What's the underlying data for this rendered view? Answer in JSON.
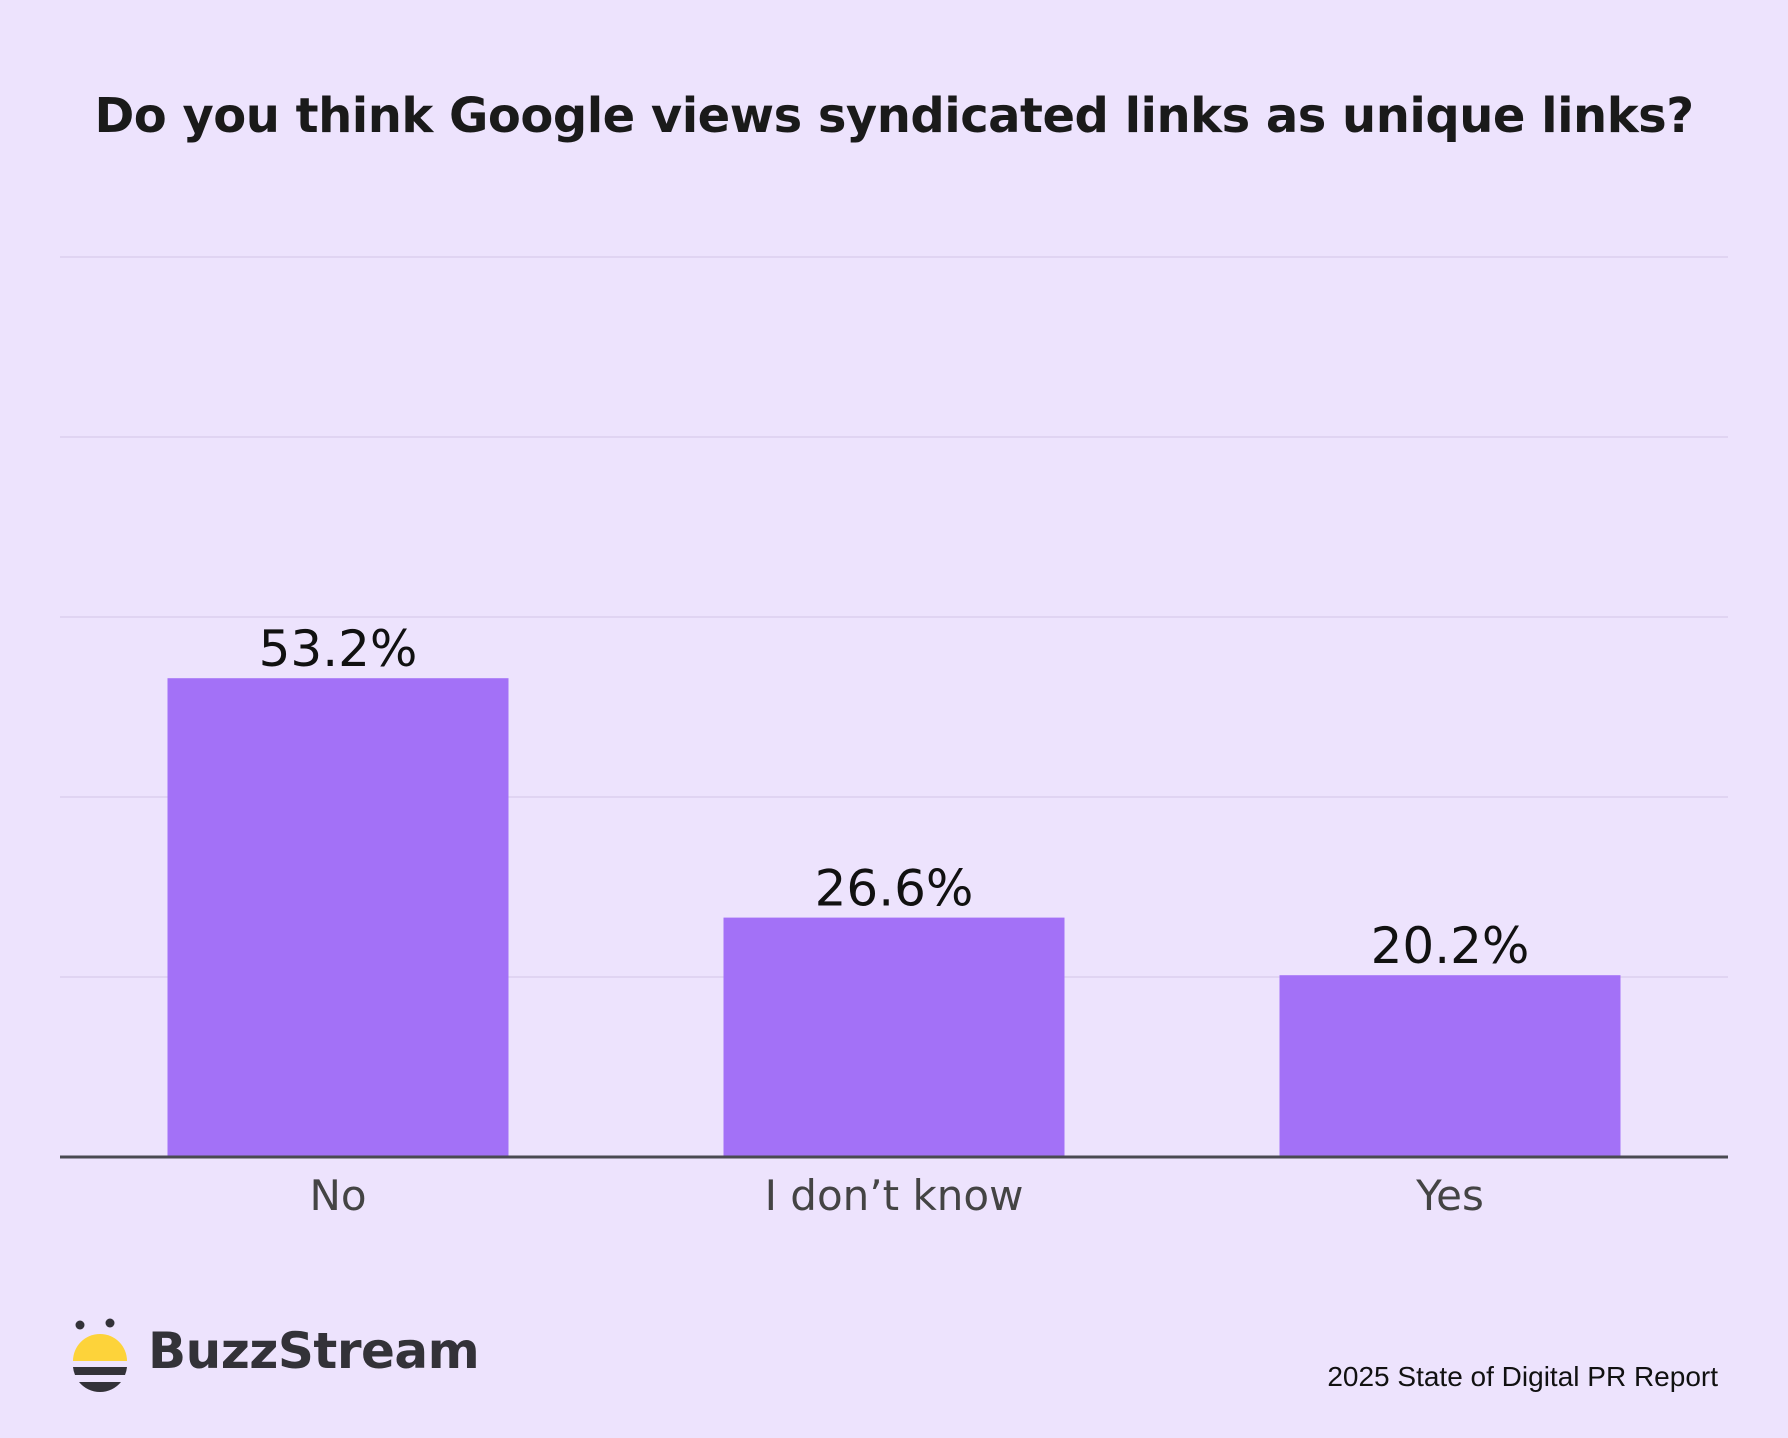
{
  "page": {
    "background": "#EDE3FD",
    "report_label": "2025 State of Digital PR Report"
  },
  "logo": {
    "text": "BuzzStream",
    "icon": "buzzstream-bee-icon",
    "icon_color": "#FDD33A",
    "stripe_color": "#333238"
  },
  "chart_data": {
    "type": "bar",
    "title": "Do you think Google views syndicated links as unique links?",
    "categories": [
      "No",
      "I don’t know",
      "Yes"
    ],
    "values": [
      53.2,
      26.6,
      20.2
    ],
    "data_labels": [
      "53.2%",
      "26.6%",
      "20.2%"
    ],
    "ylim": [
      0,
      100
    ],
    "grid": true,
    "xlabel": "",
    "ylabel": "",
    "colors": {
      "bar": "#A371F7",
      "grid": "#DCD0EE",
      "axis": "#4A4A52",
      "data_label": "#111111",
      "tick_label": "#444444"
    }
  }
}
